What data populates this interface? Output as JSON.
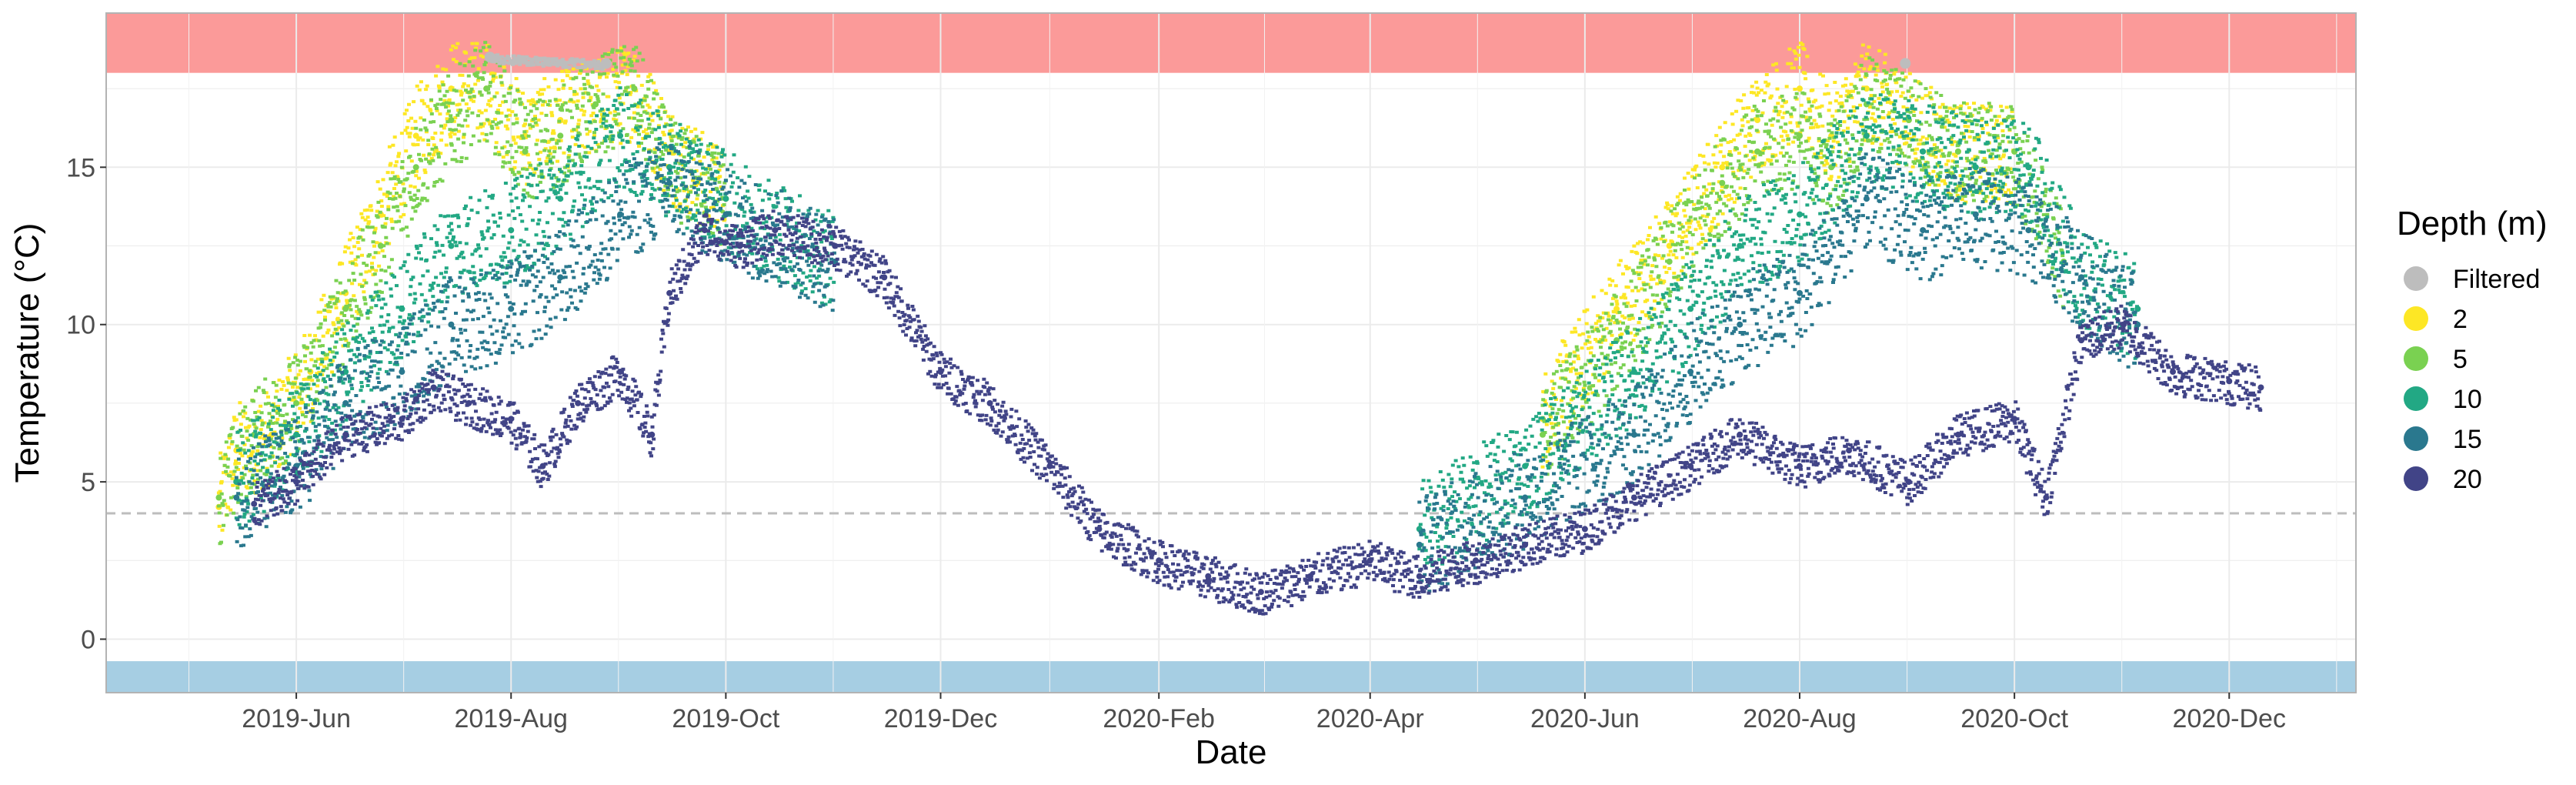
{
  "chart_data": {
    "type": "scatter",
    "xlabel": "Date",
    "ylabel": "Temperature (°C)",
    "xlim": [
      "2019-04-08",
      "2021-01-06"
    ],
    "ylim": [
      -1.7,
      19.9
    ],
    "x_ticks": [
      {
        "date": "2019-06-01",
        "label": "2019-Jun"
      },
      {
        "date": "2019-08-01",
        "label": "2019-Aug"
      },
      {
        "date": "2019-10-01",
        "label": "2019-Oct"
      },
      {
        "date": "2019-12-01",
        "label": "2019-Dec"
      },
      {
        "date": "2020-02-01",
        "label": "2020-Feb"
      },
      {
        "date": "2020-04-01",
        "label": "2020-Apr"
      },
      {
        "date": "2020-06-01",
        "label": "2020-Jun"
      },
      {
        "date": "2020-08-01",
        "label": "2020-Aug"
      },
      {
        "date": "2020-10-01",
        "label": "2020-Oct"
      },
      {
        "date": "2020-12-01",
        "label": "2020-Dec"
      }
    ],
    "y_ticks": [
      0,
      5,
      10,
      15
    ],
    "grid": true,
    "bands": [
      {
        "ymin": 18,
        "ymax": 19.9,
        "color": "#fb9a99"
      },
      {
        "ymin": -1.7,
        "ymax": -0.7,
        "color": "#a6cee3"
      }
    ],
    "reference_line": {
      "y": 4,
      "color": "#bdbdbd",
      "style": "dashed"
    },
    "legend": {
      "title": "Depth (m)",
      "position": "right",
      "entries": [
        {
          "label": "Filtered",
          "color": "#bdbdbd"
        },
        {
          "label": "2",
          "color": "#fde725"
        },
        {
          "label": "5",
          "color": "#7ad151"
        },
        {
          "label": "10",
          "color": "#22a884"
        },
        {
          "label": "15",
          "color": "#2a788e"
        },
        {
          "label": "20",
          "color": "#414487"
        }
      ]
    },
    "series": [
      {
        "name": "2",
        "color": "#fde725",
        "data": [
          [
            "2019-05-10",
            4.2
          ],
          [
            "2019-05-15",
            6.0
          ],
          [
            "2019-05-25",
            6.5
          ],
          [
            "2019-06-05",
            8.5
          ],
          [
            "2019-06-15",
            11.0
          ],
          [
            "2019-06-25",
            13.5
          ],
          [
            "2019-07-05",
            16.0
          ],
          [
            "2019-07-15",
            17.5
          ],
          [
            "2019-07-25",
            17.5
          ],
          [
            "2019-08-05",
            16.0
          ],
          [
            "2019-08-15",
            16.5
          ],
          [
            "2019-08-25",
            17.0
          ],
          [
            "2019-09-05",
            17.5
          ],
          [
            "2019-09-15",
            15.5
          ],
          [
            "2019-10-01",
            14.0
          ],
          [
            "2020-05-20",
            7.0
          ],
          [
            "2020-06-10",
            10.5
          ],
          [
            "2020-06-25",
            12.5
          ],
          [
            "2020-07-10",
            15.0
          ],
          [
            "2020-07-20",
            16.5
          ],
          [
            "2020-08-01",
            17.5
          ],
          [
            "2020-08-10",
            16.0
          ],
          [
            "2020-08-20",
            17.5
          ],
          [
            "2020-09-01",
            16.5
          ],
          [
            "2020-09-15",
            15.5
          ],
          [
            "2020-10-01",
            15.5
          ]
        ]
      },
      {
        "name": "5",
        "color": "#7ad151",
        "data": [
          [
            "2019-05-10",
            4.5
          ],
          [
            "2019-05-20",
            6.5
          ],
          [
            "2019-06-01",
            7.5
          ],
          [
            "2019-06-15",
            10.5
          ],
          [
            "2019-06-25",
            12.5
          ],
          [
            "2019-07-05",
            15.0
          ],
          [
            "2019-07-15",
            16.5
          ],
          [
            "2019-07-25",
            17.5
          ],
          [
            "2019-08-05",
            15.5
          ],
          [
            "2019-08-15",
            16.0
          ],
          [
            "2019-08-25",
            17.0
          ],
          [
            "2019-09-05",
            17.5
          ],
          [
            "2019-09-15",
            15.0
          ],
          [
            "2019-10-01",
            14.0
          ],
          [
            "2020-05-20",
            6.5
          ],
          [
            "2020-06-10",
            9.5
          ],
          [
            "2020-06-25",
            12.0
          ],
          [
            "2020-07-10",
            14.5
          ],
          [
            "2020-07-20",
            15.5
          ],
          [
            "2020-08-01",
            16.0
          ],
          [
            "2020-08-10",
            15.0
          ],
          [
            "2020-08-20",
            17.0
          ],
          [
            "2020-09-01",
            16.5
          ],
          [
            "2020-09-15",
            15.5
          ],
          [
            "2020-10-01",
            15.5
          ],
          [
            "2020-10-15",
            12.0
          ]
        ]
      },
      {
        "name": "10",
        "color": "#22a884",
        "data": [
          [
            "2019-05-15",
            5.0
          ],
          [
            "2019-06-01",
            6.5
          ],
          [
            "2019-06-15",
            8.5
          ],
          [
            "2019-07-01",
            10.5
          ],
          [
            "2019-07-15",
            12.5
          ],
          [
            "2019-08-01",
            13.0
          ],
          [
            "2019-08-15",
            14.0
          ],
          [
            "2019-09-01",
            16.0
          ],
          [
            "2019-09-15",
            15.0
          ],
          [
            "2019-10-01",
            14.0
          ],
          [
            "2019-11-01",
            12.0
          ],
          [
            "2020-04-15",
            3.5
          ],
          [
            "2020-05-15",
            5.5
          ],
          [
            "2020-06-15",
            8.5
          ],
          [
            "2020-07-01",
            10.5
          ],
          [
            "2020-07-15",
            12.5
          ],
          [
            "2020-08-01",
            13.5
          ],
          [
            "2020-08-20",
            16.0
          ],
          [
            "2020-09-05",
            15.5
          ],
          [
            "2020-09-20",
            15.0
          ],
          [
            "2020-10-05",
            15.0
          ],
          [
            "2020-10-20",
            11.5
          ],
          [
            "2020-11-05",
            10.5
          ]
        ]
      },
      {
        "name": "15",
        "color": "#2a788e",
        "data": [
          [
            "2019-05-15",
            4.5
          ],
          [
            "2019-06-01",
            5.5
          ],
          [
            "2019-06-15",
            7.5
          ],
          [
            "2019-07-01",
            8.5
          ],
          [
            "2019-07-15",
            10.0
          ],
          [
            "2019-08-01",
            10.5
          ],
          [
            "2019-08-15",
            11.5
          ],
          [
            "2019-09-01",
            13.5
          ],
          [
            "2019-09-15",
            14.5
          ],
          [
            "2019-10-01",
            13.5
          ],
          [
            "2019-11-01",
            12.0
          ],
          [
            "2020-04-15",
            3.0
          ],
          [
            "2020-05-15",
            4.5
          ],
          [
            "2020-06-15",
            6.5
          ],
          [
            "2020-07-01",
            8.5
          ],
          [
            "2020-07-15",
            10.0
          ],
          [
            "2020-08-01",
            11.0
          ],
          [
            "2020-08-20",
            14.0
          ],
          [
            "2020-09-05",
            13.0
          ],
          [
            "2020-09-20",
            13.5
          ],
          [
            "2020-10-05",
            13.0
          ],
          [
            "2020-10-20",
            11.5
          ],
          [
            "2020-11-05",
            10.0
          ]
        ]
      },
      {
        "name": "20",
        "color": "#414487",
        "data": [
          [
            "2019-05-20",
            4.3
          ],
          [
            "2019-06-01",
            5.0
          ],
          [
            "2019-06-15",
            6.5
          ],
          [
            "2019-07-01",
            7.0
          ],
          [
            "2019-07-10",
            8.0
          ],
          [
            "2019-07-20",
            7.5
          ],
          [
            "2019-08-01",
            7.0
          ],
          [
            "2019-08-10",
            5.5
          ],
          [
            "2019-08-20",
            7.5
          ],
          [
            "2019-09-01",
            8.5
          ],
          [
            "2019-09-10",
            6.5
          ],
          [
            "2019-09-15",
            11.0
          ],
          [
            "2019-09-25",
            13.0
          ],
          [
            "2019-10-05",
            12.5
          ],
          [
            "2019-10-15",
            13.0
          ],
          [
            "2019-11-01",
            12.5
          ],
          [
            "2019-11-15",
            11.5
          ],
          [
            "2019-12-01",
            8.5
          ],
          [
            "2019-12-15",
            7.5
          ],
          [
            "2020-01-01",
            5.5
          ],
          [
            "2020-01-15",
            3.5
          ],
          [
            "2020-02-01",
            2.5
          ],
          [
            "2020-02-15",
            2.0
          ],
          [
            "2020-03-01",
            1.5
          ],
          [
            "2020-03-15",
            2.0
          ],
          [
            "2020-04-01",
            2.5
          ],
          [
            "2020-04-15",
            2.0
          ],
          [
            "2020-05-01",
            2.5
          ],
          [
            "2020-05-15",
            3.0
          ],
          [
            "2020-06-01",
            3.5
          ],
          [
            "2020-06-15",
            4.5
          ],
          [
            "2020-07-01",
            5.5
          ],
          [
            "2020-07-15",
            6.5
          ],
          [
            "2020-08-01",
            5.5
          ],
          [
            "2020-08-15",
            6.0
          ],
          [
            "2020-09-01",
            5.0
          ],
          [
            "2020-09-15",
            6.5
          ],
          [
            "2020-10-01",
            7.0
          ],
          [
            "2020-10-10",
            4.5
          ],
          [
            "2020-10-20",
            9.5
          ],
          [
            "2020-11-01",
            10.0
          ],
          [
            "2020-11-15",
            8.5
          ],
          [
            "2020-12-01",
            8.2
          ],
          [
            "2020-12-10",
            8.0
          ]
        ]
      },
      {
        "name": "Filtered",
        "color": "#bdbdbd",
        "data": [
          [
            "2019-07-26",
            18.5
          ],
          [
            "2019-08-28",
            18.3
          ],
          [
            "2020-08-31",
            18.3
          ]
        ]
      }
    ]
  }
}
